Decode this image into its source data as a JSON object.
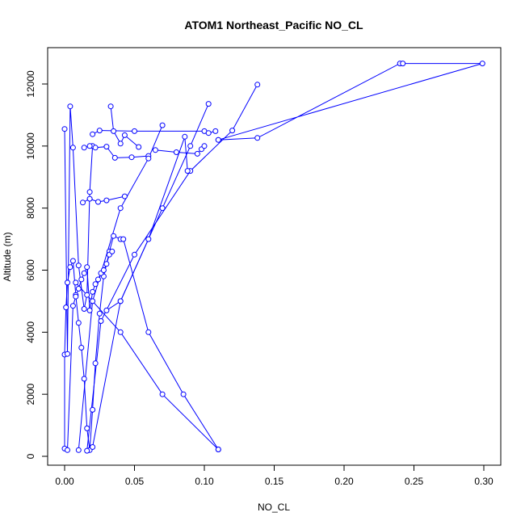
{
  "chart_data": {
    "type": "line",
    "title": "ATOM1 Northeast_Pacific NO_CL",
    "xlabel": "NO_CL",
    "ylabel": "Altitude (m)",
    "xlim": [
      0.0,
      0.3
    ],
    "ylim": [
      0,
      12000
    ],
    "x_ticks": [
      "0.00",
      "0.05",
      "0.10",
      "0.15",
      "0.20",
      "0.25",
      "0.30"
    ],
    "y_ticks": [
      "0",
      "2000",
      "4000",
      "6000",
      "8000",
      "10000",
      "12000"
    ],
    "grid": false,
    "color": "#0000ff",
    "series": [
      {
        "x": [
          0.0,
          0.0,
          0.001,
          0.002,
          0.004,
          0.006,
          0.008,
          0.01,
          0.012,
          0.014,
          0.016,
          0.018,
          0.02,
          0.022,
          0.025,
          0.028,
          0.032,
          0.035,
          0.04
        ],
        "y": [
          250,
          3280,
          4800,
          5600,
          6100,
          6300,
          5200,
          4300,
          3500,
          2500,
          900,
          200,
          1500,
          3000,
          4600,
          5800,
          6600,
          7100,
          7000
        ]
      },
      {
        "x": [
          0.002,
          0.006,
          0.008,
          0.01,
          0.012,
          0.014,
          0.016,
          0.018,
          0.02,
          0.022,
          0.024,
          0.026,
          0.028,
          0.03,
          0.032,
          0.034
        ],
        "y": [
          200,
          4850,
          5150,
          5400,
          5700,
          5900,
          6100,
          4700,
          5300,
          5550,
          5700,
          5900,
          6000,
          6200,
          6500,
          6600
        ]
      },
      {
        "x": [
          0.0,
          0.002,
          0.004,
          0.006,
          0.01,
          0.014,
          0.016,
          0.018,
          0.02
        ],
        "y": [
          10550,
          3300,
          11280,
          9950,
          6150,
          4750,
          5200,
          8520,
          10000
        ]
      },
      {
        "x": [
          0.033,
          0.035,
          0.04,
          0.043,
          0.053
        ],
        "y": [
          11280,
          10480,
          10080,
          10350,
          9970
        ]
      },
      {
        "x": [
          0.013,
          0.018,
          0.024,
          0.03,
          0.043
        ],
        "y": [
          8180,
          8300,
          8200,
          8250,
          8380
        ]
      },
      {
        "x": [
          0.014,
          0.018,
          0.022,
          0.03,
          0.036,
          0.048,
          0.06
        ],
        "y": [
          9950,
          10000,
          9950,
          9980,
          9620,
          9640,
          9680
        ]
      },
      {
        "x": [
          0.02,
          0.025,
          0.05,
          0.1,
          0.103,
          0.108
        ],
        "y": [
          10380,
          10500,
          10480,
          10480,
          10420,
          10480
        ]
      },
      {
        "x": [
          0.065,
          0.08,
          0.095,
          0.098,
          0.1
        ],
        "y": [
          9870,
          9800,
          9750,
          9900,
          10000
        ]
      },
      {
        "x": [
          0.07,
          0.06,
          0.04,
          0.02,
          0.01
        ],
        "y": [
          10670,
          9600,
          8000,
          5000,
          200
        ]
      },
      {
        "x": [
          0.103,
          0.09,
          0.07,
          0.04,
          0.02
        ],
        "y": [
          11360,
          10000,
          8000,
          5000,
          300
        ]
      },
      {
        "x": [
          0.138,
          0.12,
          0.09,
          0.05,
          0.026,
          0.016
        ],
        "y": [
          11980,
          10500,
          9200,
          6500,
          4360,
          180
        ]
      },
      {
        "x": [
          0.11,
          0.138,
          0.24,
          0.242,
          0.299,
          0.11
        ],
        "y": [
          10200,
          10260,
          12660,
          12660,
          12660,
          10200
        ]
      },
      {
        "x": [
          0.042,
          0.06,
          0.085,
          0.11
        ],
        "y": [
          7000,
          4000,
          2000,
          220
        ]
      },
      {
        "x": [
          0.11,
          0.07,
          0.04,
          0.008
        ],
        "y": [
          220,
          2000,
          4000,
          5600
        ]
      },
      {
        "x": [
          0.088,
          0.086,
          0.06,
          0.04,
          0.03
        ],
        "y": [
          9200,
          10300,
          7000,
          5000,
          4700
        ]
      }
    ]
  }
}
